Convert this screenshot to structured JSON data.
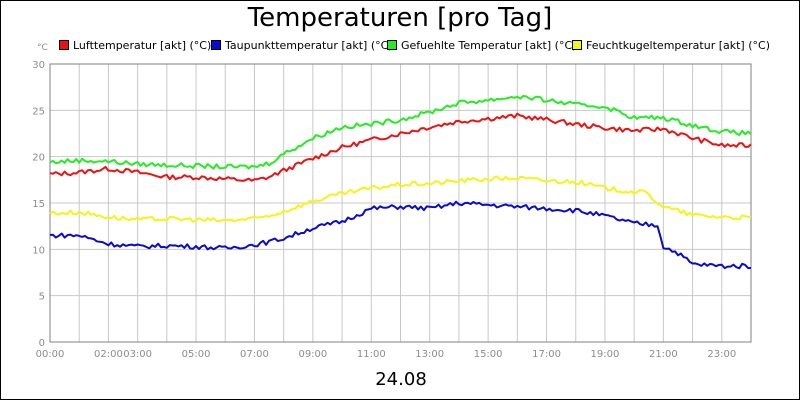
{
  "chart_data": {
    "type": "line",
    "title": "Temperaturen [pro Tag]",
    "ylabel": "°C",
    "xlabel": "24.08",
    "ylim": [
      0,
      30
    ],
    "yticks": [
      0,
      5,
      10,
      15,
      20,
      25,
      30
    ],
    "xlim": [
      0,
      24
    ],
    "xticks": [
      {
        "h": 0,
        "label": "00:00"
      },
      {
        "h": 2,
        "label": "02:00"
      },
      {
        "h": 3,
        "label": "03:00"
      },
      {
        "h": 5,
        "label": "05:00"
      },
      {
        "h": 7,
        "label": "07:00"
      },
      {
        "h": 9,
        "label": "09:00"
      },
      {
        "h": 11,
        "label": "11:00"
      },
      {
        "h": 13,
        "label": "13:00"
      },
      {
        "h": 15,
        "label": "15:00"
      },
      {
        "h": 17,
        "label": "17:00"
      },
      {
        "h": 19,
        "label": "19:00"
      },
      {
        "h": 21,
        "label": "21:00"
      },
      {
        "h": 23,
        "label": "23:00"
      }
    ],
    "grid": true,
    "legend_position": "top",
    "series": [
      {
        "name": "Lufttemperatur [akt] (°C)",
        "color": "#ee1111",
        "x": [
          0,
          1,
          2,
          3,
          4,
          5,
          6,
          7,
          7.5,
          8,
          9,
          10,
          11,
          12,
          13,
          14,
          15,
          16,
          17,
          18,
          19,
          20,
          21,
          22,
          23,
          24
        ],
        "y": [
          18.1,
          18.3,
          18.7,
          18.3,
          17.8,
          17.8,
          17.6,
          17.4,
          17.8,
          18.5,
          19.8,
          21,
          21.8,
          22.5,
          23.2,
          23.8,
          24.1,
          24.4,
          24,
          23.5,
          23.1,
          22.8,
          23,
          22,
          21.2,
          21.2
        ]
      },
      {
        "name": "Taupunkttemperatur [akt] (°C)",
        "color": "#0a0ad2",
        "x": [
          0,
          1,
          2,
          3,
          4,
          5,
          6,
          7,
          7.5,
          8,
          9,
          10,
          11,
          12,
          13,
          14,
          15,
          16,
          17,
          18,
          19,
          20,
          20.8,
          21,
          21.5,
          22,
          23,
          24
        ],
        "y": [
          11.5,
          11.5,
          10.6,
          10.3,
          10.4,
          10.3,
          10.1,
          10.5,
          10.8,
          11.2,
          12.3,
          13,
          14.4,
          14.6,
          14.4,
          15,
          14.8,
          14.6,
          14.4,
          14.2,
          13.6,
          12.8,
          12.6,
          10.3,
          9.6,
          8.4,
          8.2,
          8.2
        ]
      },
      {
        "name": "Gefuehlte Temperatur [akt] (°C)",
        "color": "#22ee22",
        "x": [
          0,
          1,
          2,
          3,
          4,
          5,
          6,
          7,
          7.5,
          8,
          9,
          10,
          11,
          12,
          13,
          14,
          15,
          16,
          17,
          18,
          19,
          20,
          21,
          22,
          23,
          24
        ],
        "y": [
          19.4,
          19.6,
          19.5,
          19.2,
          19.1,
          19,
          18.9,
          18.9,
          19.3,
          20.3,
          22,
          23.2,
          23.5,
          24,
          24.8,
          25.8,
          26.1,
          26.5,
          26.1,
          25.6,
          25.4,
          24.2,
          24.2,
          23.4,
          22.7,
          22.5
        ]
      },
      {
        "name": "Feuchtkugeltemperatur [akt] (°C)",
        "color": "#f5f514",
        "x": [
          0,
          1,
          2,
          3,
          4,
          5,
          6,
          7,
          7.5,
          8,
          9,
          10,
          11,
          12,
          13,
          14,
          15,
          16,
          17,
          18,
          19,
          20,
          20.4,
          21,
          22,
          23,
          24
        ],
        "y": [
          13.9,
          14,
          13.5,
          13.2,
          13.3,
          13.2,
          13.1,
          13.3,
          13.6,
          14.1,
          15.2,
          16,
          16.6,
          17,
          17.1,
          17.4,
          17.6,
          17.7,
          17.4,
          17.3,
          16.6,
          16.2,
          16.1,
          14.6,
          13.7,
          13.5,
          13.4
        ]
      }
    ]
  }
}
